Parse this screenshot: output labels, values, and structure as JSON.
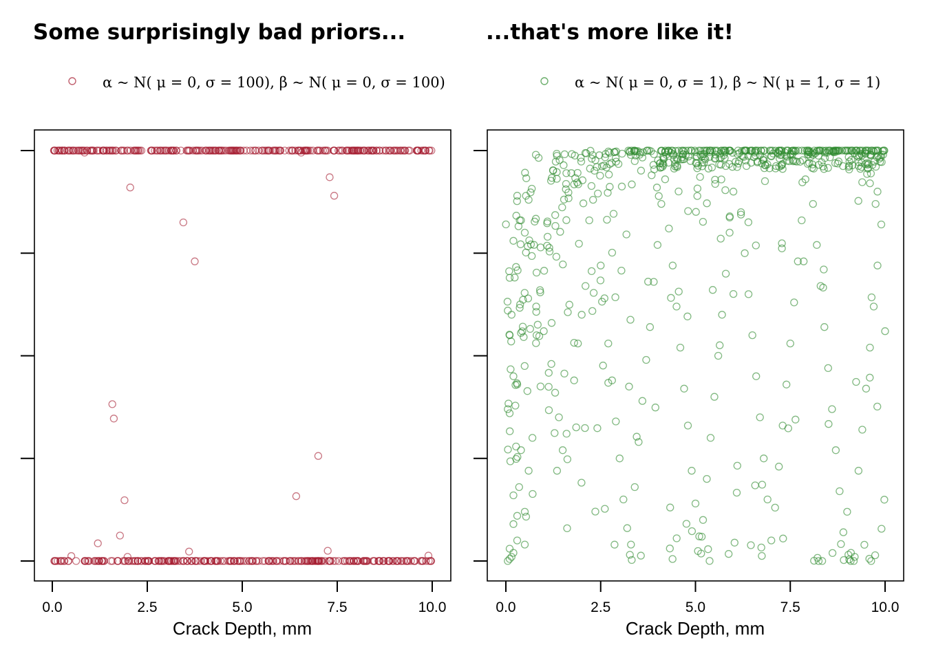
{
  "colors": {
    "red": "#a51c30",
    "green": "#2e8b2e"
  },
  "chart_data": [
    {
      "type": "scatter",
      "title": "Some surprisingly bad priors...",
      "legend": "α ~ N( μ = 0, σ = 100),  β  ~ N( μ = 0, σ = 100)",
      "xlabel": "Crack Depth, mm",
      "ylabel": "",
      "xlim": [
        0,
        10
      ],
      "ylim": [
        0,
        1
      ],
      "xticks": [
        "0.0",
        "2.5",
        "5.0",
        "7.5",
        "10.0"
      ],
      "yticks": [
        0,
        0.25,
        0.5,
        0.75,
        1
      ],
      "grid": false,
      "legend_position": "top",
      "color": "red",
      "points": [
        [
          2.05,
          0.91
        ],
        [
          3.45,
          0.825
        ],
        [
          3.75,
          0.73
        ],
        [
          7.3,
          0.935
        ],
        [
          7.42,
          0.89
        ],
        [
          1.58,
          0.382
        ],
        [
          1.62,
          0.347
        ],
        [
          7.0,
          0.256
        ],
        [
          6.42,
          0.158
        ],
        [
          1.9,
          0.148
        ],
        [
          1.78,
          0.062
        ],
        [
          1.2,
          0.043
        ],
        [
          7.25,
          0.025
        ],
        [
          3.6,
          0.023
        ],
        [
          0.5,
          0.012
        ],
        [
          1.98,
          0.01
        ],
        [
          9.9,
          0.013
        ],
        [
          0.85,
          0.995
        ],
        [
          6.55,
          0.995
        ]
      ],
      "band_points": {
        "y": [
          0,
          1
        ],
        "x_min": 0,
        "x_max": 10,
        "count_each": 280
      }
    },
    {
      "type": "scatter",
      "title": "...that's more like it!",
      "legend": "α ~ N( μ = 0, σ = 1),  β  ~ N( μ = 1, σ = 1)",
      "xlabel": "Crack Depth, mm",
      "ylabel": "",
      "xlim": [
        0,
        10
      ],
      "ylim": [
        0,
        1
      ],
      "xticks": [
        "0.0",
        "2.5",
        "5.0",
        "7.5",
        "10.0"
      ],
      "yticks": [
        0,
        0.25,
        0.5,
        0.75,
        1
      ],
      "grid": false,
      "legend_position": "top",
      "color": "green",
      "points": [
        [
          0.05,
          0.0
        ],
        [
          0.1,
          0.005
        ],
        [
          0.15,
          0.01
        ],
        [
          0.2,
          0.02
        ],
        [
          0.1,
          0.03
        ],
        [
          0.3,
          0.05
        ],
        [
          0.5,
          0.04
        ],
        [
          0.2,
          0.09
        ],
        [
          0.05,
          0.37
        ],
        [
          0.1,
          0.55
        ],
        [
          0.05,
          0.61
        ],
        [
          0.1,
          0.69
        ],
        [
          0.2,
          0.78
        ],
        [
          0.3,
          0.89
        ],
        [
          0.4,
          0.83
        ],
        [
          0.5,
          0.8
        ],
        [
          0.6,
          0.88
        ],
        [
          0.15,
          0.6
        ],
        [
          0.2,
          0.45
        ],
        [
          0.3,
          0.43
        ],
        [
          0.1,
          0.36
        ],
        [
          0.2,
          0.16
        ],
        [
          0.3,
          0.11
        ],
        [
          0.35,
          0.18
        ],
        [
          0.5,
          0.12
        ],
        [
          0.6,
          0.22
        ],
        [
          0.4,
          0.27
        ],
        [
          0.7,
          0.3
        ],
        [
          0.8,
          0.62
        ],
        [
          0.9,
          0.66
        ],
        [
          1.1,
          0.79
        ],
        [
          1.0,
          0.56
        ],
        [
          1.2,
          0.48
        ],
        [
          1.3,
          0.41
        ],
        [
          1.35,
          0.22
        ],
        [
          1.4,
          0.35
        ],
        [
          1.5,
          0.27
        ],
        [
          1.6,
          0.31
        ],
        [
          1.8,
          0.44
        ],
        [
          1.9,
          0.53
        ],
        [
          2.0,
          0.6
        ],
        [
          2.1,
          0.67
        ],
        [
          2.2,
          0.83
        ],
        [
          2.3,
          0.88
        ],
        [
          2.4,
          0.96
        ],
        [
          2.5,
          0.72
        ],
        [
          2.6,
          0.64
        ],
        [
          2.7,
          0.53
        ],
        [
          2.8,
          0.44
        ],
        [
          2.9,
          0.34
        ],
        [
          3.0,
          0.25
        ],
        [
          3.1,
          0.15
        ],
        [
          3.2,
          0.08
        ],
        [
          3.3,
          0.04
        ],
        [
          3.4,
          0.18
        ],
        [
          3.5,
          0.29
        ],
        [
          3.6,
          0.39
        ],
        [
          3.7,
          0.49
        ],
        [
          3.8,
          0.57
        ],
        [
          3.9,
          0.68
        ],
        [
          4.0,
          0.77
        ],
        [
          4.1,
          0.87
        ],
        [
          4.2,
          0.93
        ],
        [
          4.3,
          0.81
        ],
        [
          4.4,
          0.72
        ],
        [
          4.5,
          0.62
        ],
        [
          4.6,
          0.52
        ],
        [
          4.7,
          0.42
        ],
        [
          4.8,
          0.33
        ],
        [
          4.9,
          0.22
        ],
        [
          5.0,
          0.14
        ],
        [
          5.1,
          0.06
        ],
        [
          5.2,
          0.1
        ],
        [
          5.3,
          0.2
        ],
        [
          5.4,
          0.3
        ],
        [
          5.5,
          0.4
        ],
        [
          5.6,
          0.5
        ],
        [
          5.7,
          0.6
        ],
        [
          5.8,
          0.7
        ],
        [
          5.9,
          0.8
        ],
        [
          6.0,
          0.9
        ],
        [
          6.1,
          0.96
        ],
        [
          6.2,
          0.85
        ],
        [
          6.3,
          0.75
        ],
        [
          6.4,
          0.65
        ],
        [
          6.5,
          0.55
        ],
        [
          6.6,
          0.45
        ],
        [
          6.7,
          0.35
        ],
        [
          6.8,
          0.25
        ],
        [
          6.9,
          0.15
        ],
        [
          7.0,
          0.05
        ],
        [
          7.1,
          0.13
        ],
        [
          7.2,
          0.23
        ],
        [
          7.3,
          0.33
        ],
        [
          7.4,
          0.43
        ],
        [
          7.5,
          0.53
        ],
        [
          7.6,
          0.63
        ],
        [
          7.7,
          0.73
        ],
        [
          7.8,
          0.83
        ],
        [
          7.9,
          0.93
        ],
        [
          8.0,
          0.97
        ],
        [
          8.1,
          0.87
        ],
        [
          8.2,
          0.77
        ],
        [
          8.3,
          0.67
        ],
        [
          8.4,
          0.57
        ],
        [
          8.5,
          0.47
        ],
        [
          8.6,
          0.37
        ],
        [
          8.7,
          0.27
        ],
        [
          8.8,
          0.17
        ],
        [
          8.9,
          0.07
        ],
        [
          9.0,
          0.12
        ],
        [
          9.1,
          0.02
        ],
        [
          9.2,
          0.01
        ],
        [
          9.3,
          0.22
        ],
        [
          9.4,
          0.32
        ],
        [
          9.5,
          0.42
        ],
        [
          9.6,
          0.52
        ],
        [
          9.7,
          0.62
        ],
        [
          9.8,
          0.72
        ],
        [
          9.9,
          0.82
        ],
        [
          10.0,
          0.56
        ],
        [
          9.85,
          0.98
        ],
        [
          9.9,
          0.99
        ],
        [
          9.95,
          0.99
        ],
        [
          9.8,
          0.9
        ],
        [
          9.75,
          0.87
        ]
      ],
      "cloud_points": {
        "model": "inverse-logit(alpha + beta * x)",
        "count": 800,
        "top_band_count": 160
      }
    }
  ]
}
